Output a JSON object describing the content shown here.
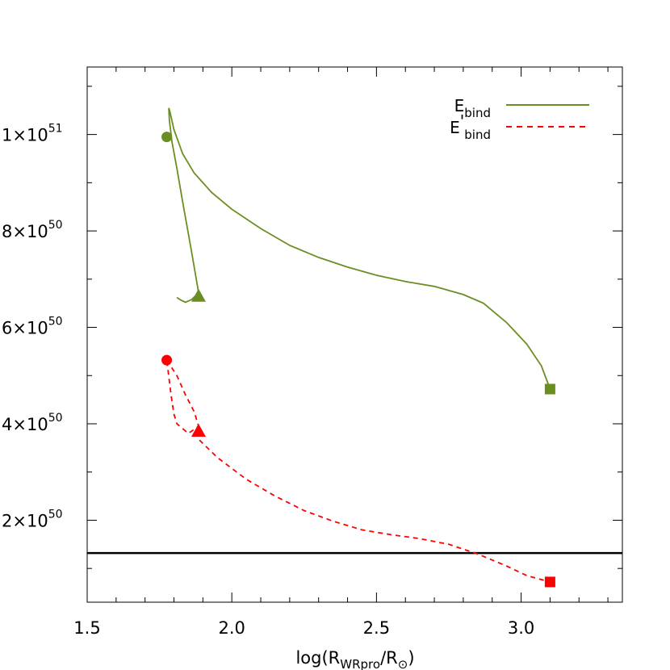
{
  "chart_data": {
    "type": "line",
    "title": "",
    "xlabel": "log(R_WRpro/R_⊙)",
    "xlabel_parts": {
      "main": "log(R",
      "sub": "WRpro",
      "mid": "/R",
      "sun": "⊙",
      "end": ")"
    },
    "ylabel": "",
    "xlim": [
      1.5,
      3.35
    ],
    "ylim": [
      3e+49,
      1.14e+51
    ],
    "x_ticks": [
      1.5,
      2.0,
      2.5,
      3.0
    ],
    "x_tick_labels": [
      "1.5",
      "2.0",
      "2.5",
      "3.0"
    ],
    "y_ticks": [
      2e+50,
      4e+50,
      6e+50,
      8e+50,
      1e+51
    ],
    "y_tick_labels": [
      {
        "mantissa": "2×10",
        "exp": "50"
      },
      {
        "mantissa": "4×10",
        "exp": "50"
      },
      {
        "mantissa": "6×10",
        "exp": "50"
      },
      {
        "mantissa": "8×10",
        "exp": "50"
      },
      {
        "mantissa": "1×10",
        "exp": "51"
      }
    ],
    "legend_position": "top-right",
    "legend": [
      {
        "base": "E",
        "prime": "",
        "sub": "bind",
        "color": "#6b8e23",
        "style": "solid"
      },
      {
        "base": "E",
        "prime": "'",
        "sub": "bind",
        "color": "#ff0000",
        "style": "dashed"
      }
    ],
    "series": [
      {
        "name": "E_bind",
        "color": "#6b8e23",
        "style": "solid",
        "points": [
          [
            1.885,
            6.72e+50
          ],
          [
            1.862,
            6.58e+50
          ],
          [
            1.84,
            6.52e+50
          ],
          [
            1.822,
            6.57e+50
          ],
          [
            1.81,
            6.62e+50
          ]
        ],
        "branch": [
          [
            1.885,
            6.72e+50
          ],
          [
            1.86,
            7.6e+50
          ],
          [
            1.83,
            8.6e+50
          ],
          [
            1.81,
            9.3e+50
          ],
          [
            1.793,
            9.85e+50
          ],
          [
            1.784,
            1.03e+51
          ],
          [
            1.782,
            1.055e+51
          ],
          [
            1.785,
            1.05e+51
          ],
          [
            1.8,
            1.01e+51
          ],
          [
            1.83,
            9.6e+50
          ],
          [
            1.87,
            9.2e+50
          ],
          [
            1.93,
            8.8e+50
          ],
          [
            2.0,
            8.45e+50
          ],
          [
            2.1,
            8.05e+50
          ],
          [
            2.2,
            7.7e+50
          ],
          [
            2.3,
            7.45e+50
          ],
          [
            2.4,
            7.25e+50
          ],
          [
            2.5,
            7.08e+50
          ],
          [
            2.6,
            6.95e+50
          ],
          [
            2.7,
            6.85e+50
          ],
          [
            2.8,
            6.68e+50
          ],
          [
            2.87,
            6.5e+50
          ],
          [
            2.95,
            6.1e+50
          ],
          [
            3.02,
            5.65e+50
          ],
          [
            3.07,
            5.2e+50
          ],
          [
            3.1,
            4.72e+50
          ]
        ],
        "markers": [
          {
            "shape": "circle",
            "x": 1.775,
            "y": 9.95e+50
          },
          {
            "shape": "triangle",
            "x": 1.885,
            "y": 6.65e+50
          },
          {
            "shape": "square",
            "x": 3.1,
            "y": 4.72e+50
          }
        ]
      },
      {
        "name": "E'_bind",
        "color": "#ff0000",
        "style": "dashed",
        "points": [
          [
            1.775,
            5.32e+50
          ],
          [
            1.81,
            5e+50
          ],
          [
            1.84,
            4.6e+50
          ],
          [
            1.87,
            4.25e+50
          ],
          [
            1.885,
            3.95e+50
          ],
          [
            1.85,
            3.8e+50
          ],
          [
            1.81,
            4e+50
          ],
          [
            1.8,
            4.2e+50
          ],
          [
            1.79,
            4.6e+50
          ],
          [
            1.775,
            5.32e+50
          ]
        ],
        "branch": [
          [
            1.885,
            3.85e+50
          ],
          [
            1.89,
            3.65e+50
          ],
          [
            1.95,
            3.3e+50
          ],
          [
            2.05,
            2.85e+50
          ],
          [
            2.15,
            2.5e+50
          ],
          [
            2.25,
            2.2e+50
          ],
          [
            2.35,
            1.98e+50
          ],
          [
            2.45,
            1.8e+50
          ],
          [
            2.55,
            1.7e+50
          ],
          [
            2.65,
            1.62e+50
          ],
          [
            2.75,
            1.5e+50
          ],
          [
            2.85,
            1.3e+50
          ],
          [
            2.95,
            1.05e+50
          ],
          [
            3.02,
            8.5e+49
          ],
          [
            3.1,
            7.2e+49
          ]
        ],
        "markers": [
          {
            "shape": "circle",
            "x": 1.775,
            "y": 5.32e+50
          },
          {
            "shape": "triangle",
            "x": 1.885,
            "y": 3.85e+50
          },
          {
            "shape": "square",
            "x": 3.1,
            "y": 7.2e+49
          }
        ]
      }
    ],
    "reference_line": {
      "y": 1.32e+50,
      "color": "#000000",
      "style": "solid"
    }
  }
}
